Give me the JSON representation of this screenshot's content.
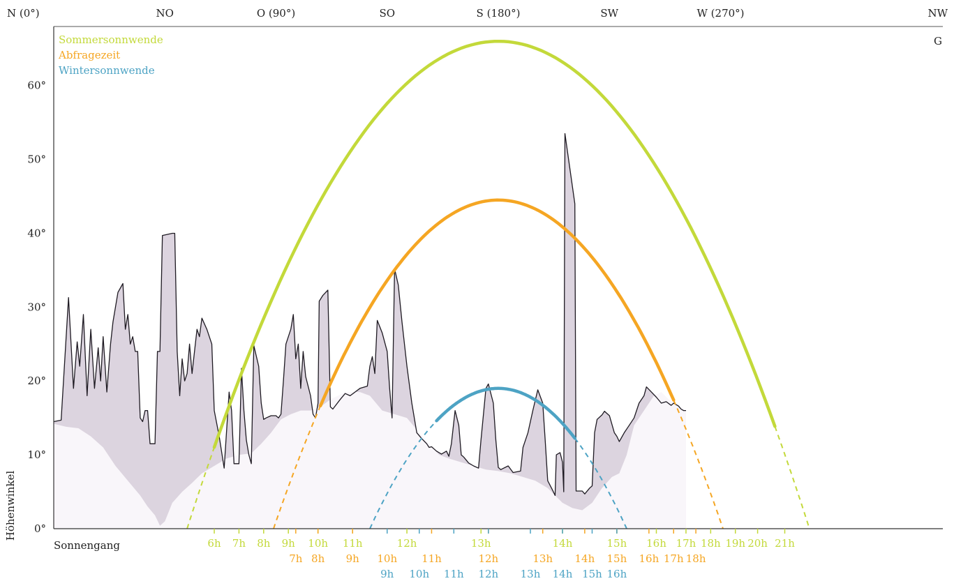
{
  "chart_data": {
    "type": "line",
    "title": "",
    "xlabel": "Sonnengang",
    "ylabel": "Höhenwinkel",
    "xlim": [
      0,
      360
    ],
    "ylim": [
      0,
      68
    ],
    "x_ticks": [
      {
        "x": 0,
        "label": "N (0°)"
      },
      {
        "x": 45,
        "label": "NO"
      },
      {
        "x": 90,
        "label": "O (90°)"
      },
      {
        "x": 135,
        "label": "SO"
      },
      {
        "x": 180,
        "label": "S (180°)"
      },
      {
        "x": 225,
        "label": "SW"
      },
      {
        "x": 270,
        "label": "W (270°)"
      },
      {
        "x": 315,
        "label": "NW"
      }
    ],
    "y_ticks": [
      {
        "y": 0,
        "label": "0°"
      },
      {
        "y": 10,
        "label": "10°"
      },
      {
        "y": 20,
        "label": "20°"
      },
      {
        "y": 30,
        "label": "30°"
      },
      {
        "y": 40,
        "label": "40°"
      },
      {
        "y": 50,
        "label": "50°"
      },
      {
        "y": 60,
        "label": "60°"
      }
    ],
    "corner_label": "G",
    "legend_position": "top-left",
    "series": [
      {
        "name": "Sommersonnwende",
        "color": "#c3d93a",
        "peak": {
          "azimuth": 180,
          "altitude": 66
        },
        "rise_azimuth": 54,
        "set_azimuth": 306,
        "solid_from_azimuth": 65,
        "solid_to_azimuth": 292,
        "hours": [
          {
            "label": "6h",
            "azimuth": 65
          },
          {
            "label": "7h",
            "azimuth": 75
          },
          {
            "label": "8h",
            "azimuth": 85
          },
          {
            "label": "9h",
            "azimuth": 95
          },
          {
            "label": "10h",
            "azimuth": 107
          },
          {
            "label": "11h",
            "azimuth": 121
          },
          {
            "label": "12h",
            "azimuth": 143
          },
          {
            "label": "13h",
            "azimuth": 173
          },
          {
            "label": "14h",
            "azimuth": 206
          },
          {
            "label": "15h",
            "azimuth": 228
          },
          {
            "label": "16h",
            "azimuth": 244
          },
          {
            "label": "17h",
            "azimuth": 256
          },
          {
            "label": "18h",
            "azimuth": 266
          },
          {
            "label": "19h",
            "azimuth": 276
          },
          {
            "label": "20h",
            "azimuth": 285
          },
          {
            "label": "21h",
            "azimuth": 296
          }
        ]
      },
      {
        "name": "Abfragezeit",
        "color": "#f5a623",
        "peak": {
          "azimuth": 180,
          "altitude": 44.5
        },
        "rise_azimuth": 89,
        "set_azimuth": 271,
        "solid_from_azimuth": 108,
        "solid_to_azimuth": 251,
        "hours": [
          {
            "label": "7h",
            "azimuth": 98
          },
          {
            "label": "8h",
            "azimuth": 107
          },
          {
            "label": "9h",
            "azimuth": 121
          },
          {
            "label": "10h",
            "azimuth": 135
          },
          {
            "label": "11h",
            "azimuth": 153
          },
          {
            "label": "12h",
            "azimuth": 176
          },
          {
            "label": "13h",
            "azimuth": 198
          },
          {
            "label": "14h",
            "azimuth": 215
          },
          {
            "label": "15h",
            "azimuth": 228
          },
          {
            "label": "16h",
            "azimuth": 241
          },
          {
            "label": "17h",
            "azimuth": 251
          },
          {
            "label": "18h",
            "azimuth": 260
          }
        ]
      },
      {
        "name": "Wintersonnwende",
        "color": "#4da3c4",
        "peak": {
          "azimuth": 180,
          "altitude": 19
        },
        "rise_azimuth": 128,
        "set_azimuth": 232,
        "solid_from_azimuth": 155,
        "solid_to_azimuth": 211,
        "hours": [
          {
            "label": "9h",
            "azimuth": 135
          },
          {
            "label": "10h",
            "azimuth": 148
          },
          {
            "label": "11h",
            "azimuth": 162
          },
          {
            "label": "12h",
            "azimuth": 176
          },
          {
            "label": "13h",
            "azimuth": 193
          },
          {
            "label": "14h",
            "azimuth": 206
          },
          {
            "label": "15h",
            "azimuth": 218
          },
          {
            "label": "16h",
            "azimuth": 228
          }
        ]
      }
    ],
    "horizon_near": [
      [
        0,
        14.5
      ],
      [
        3,
        14.7
      ],
      [
        6,
        31.3
      ],
      [
        8,
        19
      ],
      [
        9.5,
        25.3
      ],
      [
        10.5,
        22
      ],
      [
        12,
        29
      ],
      [
        13.5,
        18
      ],
      [
        15,
        27
      ],
      [
        16.5,
        19
      ],
      [
        18,
        24.5
      ],
      [
        19,
        20
      ],
      [
        20,
        26
      ],
      [
        21.5,
        18.5
      ],
      [
        23,
        25
      ],
      [
        24,
        28
      ],
      [
        26,
        32
      ],
      [
        28,
        33.2
      ],
      [
        29,
        27
      ],
      [
        30,
        29
      ],
      [
        31,
        25
      ],
      [
        32,
        26
      ],
      [
        33,
        24
      ],
      [
        34,
        24
      ],
      [
        35,
        15
      ],
      [
        36,
        14.5
      ],
      [
        37,
        16
      ],
      [
        38,
        16
      ],
      [
        39,
        11.5
      ],
      [
        41,
        11.5
      ],
      [
        42,
        24
      ],
      [
        43,
        24
      ],
      [
        44,
        39.7
      ],
      [
        48,
        40
      ],
      [
        49,
        40
      ],
      [
        50,
        24
      ],
      [
        51,
        18
      ],
      [
        52,
        23
      ],
      [
        53,
        20
      ],
      [
        54,
        21
      ],
      [
        55,
        25
      ],
      [
        56,
        21
      ],
      [
        57,
        24
      ],
      [
        58,
        27
      ],
      [
        59,
        26
      ],
      [
        60,
        28.5
      ],
      [
        62,
        27
      ],
      [
        64,
        25
      ],
      [
        65,
        16
      ],
      [
        67,
        12.5
      ],
      [
        69,
        8.2
      ],
      [
        71,
        18.5
      ],
      [
        72,
        16
      ],
      [
        73,
        8.8
      ],
      [
        75,
        8.8
      ],
      [
        76,
        21.7
      ],
      [
        77,
        16
      ],
      [
        78,
        12
      ],
      [
        79,
        10
      ],
      [
        80,
        8.8
      ],
      [
        81,
        24.8
      ],
      [
        83,
        22
      ],
      [
        84,
        17
      ],
      [
        85,
        14.8
      ],
      [
        86,
        15
      ],
      [
        88,
        15.3
      ],
      [
        90,
        15.3
      ],
      [
        91,
        15
      ],
      [
        92,
        15.5
      ],
      [
        93,
        20
      ],
      [
        94,
        25
      ],
      [
        96,
        27
      ],
      [
        97,
        29
      ],
      [
        98,
        23
      ],
      [
        99,
        25
      ],
      [
        100,
        19
      ],
      [
        101,
        24
      ],
      [
        102,
        20.6
      ],
      [
        104,
        18
      ],
      [
        105,
        15.5
      ],
      [
        106,
        15
      ],
      [
        107,
        17
      ],
      [
        107.5,
        30.8
      ],
      [
        109,
        31.6
      ],
      [
        111,
        32.3
      ],
      [
        112,
        16.5
      ],
      [
        113,
        16.2
      ],
      [
        116,
        17.5
      ],
      [
        118,
        18.3
      ],
      [
        120,
        18
      ],
      [
        122,
        18.5
      ],
      [
        124,
        19
      ],
      [
        127,
        19.3
      ],
      [
        128,
        22
      ],
      [
        129,
        23.3
      ],
      [
        130,
        21
      ],
      [
        131,
        28.2
      ],
      [
        133,
        26.5
      ],
      [
        135,
        24
      ],
      [
        136,
        19
      ],
      [
        137,
        15
      ],
      [
        138,
        35.2
      ],
      [
        139.5,
        33
      ],
      [
        141,
        28
      ],
      [
        143,
        22
      ],
      [
        145,
        17
      ],
      [
        147,
        13
      ],
      [
        149,
        12.2
      ],
      [
        151,
        11.5
      ],
      [
        152,
        11
      ],
      [
        153,
        11.1
      ],
      [
        155,
        10.5
      ],
      [
        157,
        10.1
      ],
      [
        159,
        10.5
      ],
      [
        160,
        9.8
      ],
      [
        161,
        11.5
      ],
      [
        162.5,
        16
      ],
      [
        164,
        14
      ],
      [
        165,
        10
      ],
      [
        166,
        9.7
      ],
      [
        168,
        8.9
      ],
      [
        170,
        8.5
      ],
      [
        172,
        8.2
      ],
      [
        173,
        12
      ],
      [
        175,
        19
      ],
      [
        176,
        19.6
      ],
      [
        178,
        17
      ],
      [
        179,
        12
      ],
      [
        180,
        8.3
      ],
      [
        181,
        8.0
      ],
      [
        184,
        8.5
      ],
      [
        186,
        7.6
      ],
      [
        189,
        7.8
      ],
      [
        190,
        11
      ],
      [
        192,
        13
      ],
      [
        194,
        16
      ],
      [
        196,
        18.8
      ],
      [
        198,
        17
      ],
      [
        199,
        12
      ],
      [
        200,
        6.5
      ],
      [
        202,
        5.2
      ],
      [
        203,
        4.5
      ],
      [
        203.5,
        10
      ],
      [
        205,
        10.3
      ],
      [
        206,
        9.0
      ],
      [
        206.5,
        5
      ],
      [
        207,
        53.5
      ],
      [
        211,
        44
      ],
      [
        211.5,
        5.1
      ],
      [
        214,
        5.1
      ],
      [
        215,
        4.7
      ],
      [
        217,
        5.5
      ],
      [
        218,
        5.8
      ],
      [
        219,
        13
      ],
      [
        220,
        14.8
      ],
      [
        222,
        15.4
      ],
      [
        223,
        15.9
      ],
      [
        225,
        15.3
      ],
      [
        227,
        13
      ],
      [
        228,
        12.5
      ],
      [
        229,
        11.8
      ],
      [
        231,
        13
      ],
      [
        233,
        14
      ],
      [
        235,
        15
      ],
      [
        237,
        17
      ],
      [
        239,
        18
      ],
      [
        240,
        19.2
      ],
      [
        242,
        18.5
      ],
      [
        244,
        17.8
      ],
      [
        246,
        17
      ],
      [
        248,
        17.2
      ],
      [
        250,
        16.7
      ],
      [
        251,
        17
      ],
      [
        253,
        16.6
      ],
      [
        254,
        16.2
      ],
      [
        255,
        16
      ],
      [
        256,
        16
      ]
    ],
    "horizon_far": [
      [
        0,
        14.2
      ],
      [
        5,
        13.8
      ],
      [
        10,
        13.6
      ],
      [
        15,
        12.5
      ],
      [
        20,
        11
      ],
      [
        25,
        8.5
      ],
      [
        30,
        6.5
      ],
      [
        35,
        4.5
      ],
      [
        38,
        3
      ],
      [
        41,
        1.8
      ],
      [
        43,
        0.4
      ],
      [
        45,
        1
      ],
      [
        48,
        3.5
      ],
      [
        52,
        5
      ],
      [
        56,
        6.2
      ],
      [
        60,
        7.5
      ],
      [
        65,
        8.5
      ],
      [
        70,
        9.5
      ],
      [
        75,
        10
      ],
      [
        80,
        10.2
      ],
      [
        84,
        11.5
      ],
      [
        88,
        13
      ],
      [
        92,
        14.8
      ],
      [
        96,
        15.5
      ],
      [
        100,
        16
      ],
      [
        104,
        16
      ],
      [
        108,
        16.5
      ],
      [
        112,
        17.5
      ],
      [
        118,
        18.5
      ],
      [
        124,
        18.5
      ],
      [
        128,
        18
      ],
      [
        133,
        16
      ],
      [
        138,
        15.5
      ],
      [
        143,
        15
      ],
      [
        148,
        13
      ],
      [
        152,
        11.5
      ],
      [
        156,
        10
      ],
      [
        160,
        9.5
      ],
      [
        165,
        9
      ],
      [
        170,
        8.5
      ],
      [
        175,
        8
      ],
      [
        180,
        7.8
      ],
      [
        185,
        7.5
      ],
      [
        190,
        7
      ],
      [
        195,
        6.5
      ],
      [
        200,
        5.5
      ],
      [
        203,
        4.5
      ],
      [
        206,
        3.5
      ],
      [
        210,
        2.8
      ],
      [
        214,
        2.5
      ],
      [
        218,
        3.5
      ],
      [
        222,
        5.5
      ],
      [
        226,
        7
      ],
      [
        229,
        7.5
      ],
      [
        232,
        10
      ],
      [
        235,
        14
      ],
      [
        239,
        16
      ],
      [
        243,
        18
      ],
      [
        246,
        18.5
      ],
      [
        249,
        17.5
      ],
      [
        253,
        16.6
      ],
      [
        256,
        16
      ]
    ]
  }
}
